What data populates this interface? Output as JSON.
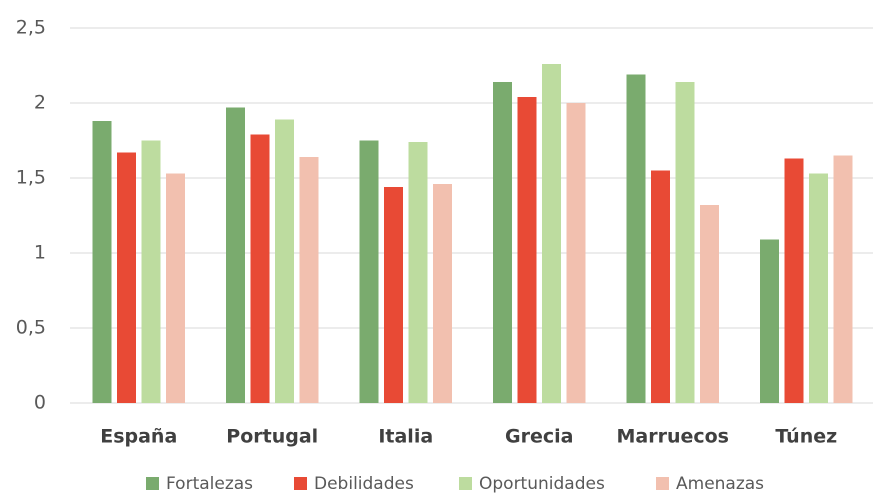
{
  "chart_data": {
    "type": "bar",
    "categories": [
      "España",
      "Portugal",
      "Italia",
      "Grecia",
      "Marruecos",
      "Túnez"
    ],
    "series": [
      {
        "name": "Fortalezas",
        "color": "#7aab6e",
        "values": [
          1.88,
          1.97,
          1.75,
          2.14,
          2.19,
          1.09
        ]
      },
      {
        "name": "Debilidades",
        "color": "#e84a35",
        "values": [
          1.67,
          1.79,
          1.44,
          2.04,
          1.55,
          1.63
        ]
      },
      {
        "name": "Oportunidades",
        "color": "#bddc9f",
        "values": [
          1.75,
          1.89,
          1.74,
          2.26,
          2.14,
          1.53
        ]
      },
      {
        "name": "Amenazas",
        "color": "#f2c0af",
        "values": [
          1.53,
          1.64,
          1.46,
          2.0,
          1.32,
          1.65
        ]
      }
    ],
    "ylim": [
      0,
      2.5
    ],
    "yticks": [
      0,
      {
        "value": 0.5,
        "label": "0,5"
      },
      1,
      {
        "value": 1.5,
        "label": "1,5"
      },
      2,
      {
        "value": 2.5,
        "label": "2,5"
      }
    ],
    "grid": true,
    "legend": "bottom"
  }
}
